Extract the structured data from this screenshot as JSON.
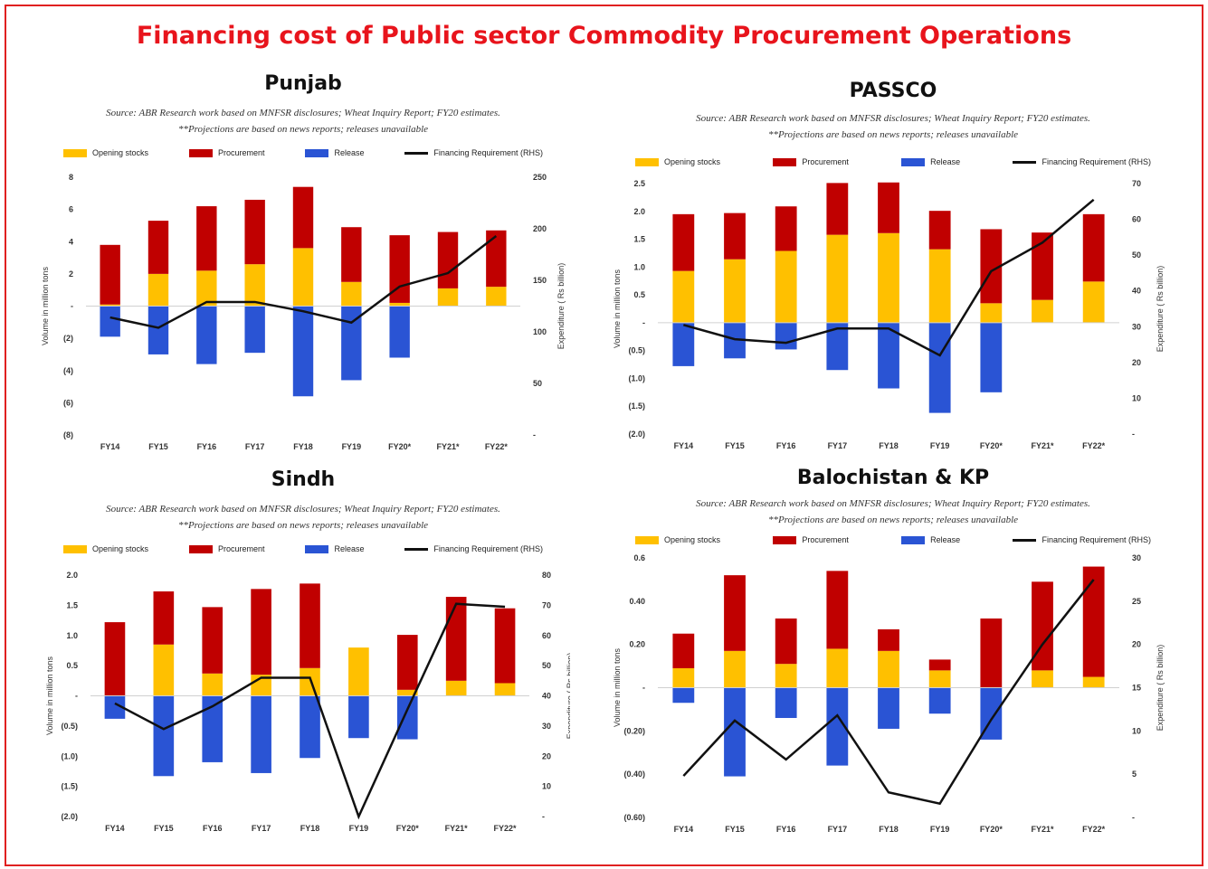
{
  "title": "Financing cost of Public sector Commodity Procurement Operations",
  "legend": {
    "opening": "Opening stocks",
    "procurement": "Procurement",
    "release": "Release",
    "financing": "Financing Requirement (RHS)"
  },
  "colors": {
    "opening": "#ffc000",
    "procurement": "#c00000",
    "release": "#2a54d4",
    "line": "#111111",
    "title": "#e8141c"
  },
  "panels": [
    {
      "id": "punjab",
      "title": "Punjab",
      "source": "Source: ABR Research work based on MNFSR disclosures; Wheat Inquiry Report; FY20 estimates. **Projections are based on news reports; releases unavailable",
      "ylabel": "Volume in million tons",
      "y2label": "Expenditure ( Rs billion)"
    },
    {
      "id": "passco",
      "title": "PASSCO",
      "source": "Source: ABR Research work based on MNFSR disclosures; Wheat Inquiry Report; FY20 estimates. **Projections are based on news reports; releases unavailable",
      "ylabel": "Volume in million tons",
      "y2label": "Expenditure ( Rs billion)"
    },
    {
      "id": "sindh",
      "title": "Sindh",
      "source": "Source: ABR Research work based on MNFSR disclosures; Wheat Inquiry Report; FY20 estimates. **Projections are based on news reports; releases unavailable",
      "ylabel": "Volume in million tons",
      "y2label": "Expenditure ( Rs billion)"
    },
    {
      "id": "balochistan",
      "title": "Balochistan & KP",
      "source": "Source: ABR Research work based on MNFSR disclosures; Wheat Inquiry Report; FY20 estimates. **Projections are based on news reports; releases unavailable",
      "ylabel": "Volume in million tons",
      "y2label": "Expenditure ( Rs billion)"
    }
  ],
  "chart_data": [
    {
      "type": "bar",
      "title": "Punjab",
      "categories": [
        "FY14",
        "FY15",
        "FY16",
        "FY17",
        "FY18",
        "FY19",
        "FY20*",
        "FY21*",
        "FY22*"
      ],
      "ylim": [
        -8,
        8
      ],
      "yticks": [
        -8,
        -6,
        -4,
        -2,
        0,
        2,
        4,
        6,
        8
      ],
      "yticklabels": [
        "(8)",
        "(6)",
        "(4)",
        "(2)",
        "-",
        "2",
        "4",
        "6",
        "8"
      ],
      "y2lim": [
        0,
        250
      ],
      "y2ticks": [
        0,
        50,
        100,
        150,
        200,
        250
      ],
      "y2ticklabels": [
        "-",
        "50",
        "100",
        "150",
        "200",
        "250"
      ],
      "series": [
        {
          "name": "Opening stocks",
          "values": [
            0.1,
            2.0,
            2.2,
            2.6,
            3.6,
            1.5,
            0.2,
            1.1,
            1.2
          ]
        },
        {
          "name": "Procurement",
          "values": [
            3.7,
            3.3,
            4.0,
            4.0,
            3.8,
            3.4,
            4.2,
            3.5,
            3.5
          ]
        },
        {
          "name": "Release",
          "values": [
            -1.9,
            -3.0,
            -3.6,
            -2.9,
            -5.6,
            -4.6,
            -3.2,
            0,
            0
          ]
        },
        {
          "name": "Financing Requirement (RHS)",
          "values": [
            114,
            104,
            129,
            129,
            120,
            109,
            144,
            157,
            193
          ],
          "axis": "right"
        }
      ]
    },
    {
      "type": "bar",
      "title": "PASSCO",
      "categories": [
        "FY14",
        "FY15",
        "FY16",
        "FY17",
        "FY18",
        "FY19",
        "FY20*",
        "FY21*",
        "FY22*"
      ],
      "ylim": [
        -2.0,
        2.5
      ],
      "yticks": [
        -2.0,
        -1.5,
        -1.0,
        -0.5,
        0,
        0.5,
        1.0,
        1.5,
        2.0,
        2.5
      ],
      "yticklabels": [
        "(2.0)",
        "(1.5)",
        "(1.0)",
        "(0.5)",
        "-",
        "0.5",
        "1.0",
        "1.5",
        "2.0",
        "2.5"
      ],
      "y2lim": [
        0,
        70
      ],
      "y2ticks": [
        0,
        10,
        20,
        30,
        40,
        50,
        60,
        70
      ],
      "y2ticklabels": [
        "-",
        "10",
        "20",
        "30",
        "40",
        "50",
        "60",
        "70"
      ],
      "series": [
        {
          "name": "Opening stocks",
          "values": [
            0.93,
            1.14,
            1.29,
            1.58,
            1.61,
            1.32,
            0.35,
            0.41,
            0.74
          ]
        },
        {
          "name": "Procurement",
          "values": [
            1.02,
            0.83,
            0.8,
            0.93,
            0.91,
            0.69,
            1.33,
            1.21,
            1.21
          ]
        },
        {
          "name": "Release",
          "values": [
            -0.78,
            -0.64,
            -0.48,
            -0.85,
            -1.18,
            -1.62,
            -1.25,
            0,
            0
          ]
        },
        {
          "name": "Financing Requirement (RHS)",
          "values": [
            30.5,
            26.5,
            25.5,
            29.5,
            29.5,
            22.0,
            45.5,
            53.5,
            65.5
          ],
          "axis": "right"
        }
      ]
    },
    {
      "type": "bar",
      "title": "Sindh",
      "categories": [
        "FY14",
        "FY15",
        "FY16",
        "FY17",
        "FY18",
        "FY19",
        "FY20*",
        "FY21*",
        "FY22*"
      ],
      "ylim": [
        -2.0,
        2.0
      ],
      "yticks": [
        -2.0,
        -1.5,
        -1.0,
        -0.5,
        0,
        0.5,
        1.0,
        1.5,
        2.0
      ],
      "yticklabels": [
        "(2.0)",
        "(1.5)",
        "(1.0)",
        "(0.5)",
        "-",
        "0.5",
        "1.0",
        "1.5",
        "2.0"
      ],
      "y2lim": [
        0,
        80
      ],
      "y2ticks": [
        0,
        10,
        20,
        30,
        40,
        50,
        60,
        70,
        80
      ],
      "y2ticklabels": [
        "-",
        "10",
        "20",
        "30",
        "40",
        "50",
        "60",
        "70",
        "80"
      ],
      "series": [
        {
          "name": "Opening stocks",
          "values": [
            0,
            0.85,
            0.37,
            0.35,
            0.46,
            0.8,
            0.1,
            0.25,
            0.21
          ]
        },
        {
          "name": "Procurement",
          "values": [
            1.22,
            0.88,
            1.1,
            1.42,
            1.4,
            0,
            0.91,
            1.39,
            1.24
          ]
        },
        {
          "name": "Release",
          "values": [
            -0.38,
            -1.33,
            -1.1,
            -1.28,
            -1.03,
            -0.7,
            -0.72,
            0,
            0
          ]
        },
        {
          "name": "Financing Requirement (RHS)",
          "values": [
            37.5,
            29,
            36.5,
            46,
            46,
            0,
            35.5,
            70.5,
            69.5
          ],
          "axis": "right"
        }
      ]
    },
    {
      "type": "bar",
      "title": "Balochistan & KP",
      "categories": [
        "FY14",
        "FY15",
        "FY16",
        "FY17",
        "FY18",
        "FY19",
        "FY20*",
        "FY21*",
        "FY22*"
      ],
      "ylim": [
        -0.6,
        0.6
      ],
      "yticks": [
        -0.6,
        -0.4,
        -0.2,
        0,
        0.2,
        0.4,
        0.6
      ],
      "yticklabels": [
        "(0.60)",
        "(0.40)",
        "(0.20)",
        "-",
        "0.20",
        "0.40",
        "0.6"
      ],
      "y2lim": [
        0,
        30
      ],
      "y2ticks": [
        0,
        5,
        10,
        15,
        20,
        25,
        30
      ],
      "y2ticklabels": [
        "-",
        "5",
        "10",
        "15",
        "20",
        "25",
        "30"
      ],
      "series": [
        {
          "name": "Opening stocks",
          "values": [
            0.09,
            0.17,
            0.11,
            0.18,
            0.17,
            0.08,
            0,
            0.08,
            0.05
          ]
        },
        {
          "name": "Procurement",
          "values": [
            0.16,
            0.35,
            0.21,
            0.36,
            0.1,
            0.05,
            0.32,
            0.41,
            0.51
          ]
        },
        {
          "name": "Release",
          "values": [
            -0.07,
            -0.41,
            -0.14,
            -0.36,
            -0.19,
            -0.12,
            -0.24,
            0,
            0
          ]
        },
        {
          "name": "Financing Requirement (RHS)",
          "values": [
            4.8,
            11.2,
            6.7,
            11.8,
            2.9,
            1.6,
            11.3,
            20.0,
            27.5
          ],
          "axis": "right"
        }
      ]
    }
  ]
}
